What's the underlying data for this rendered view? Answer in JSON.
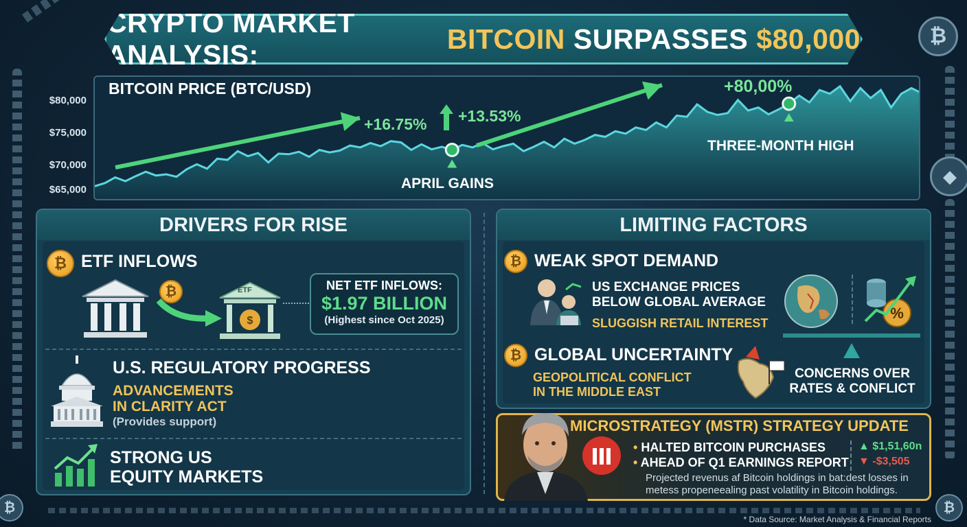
{
  "title": {
    "part1": "CRYPTO MARKET ANALYSIS:",
    "part2": "BITCOIN",
    "part3": "SURPASSES",
    "part4": "$80,000"
  },
  "chart_data": {
    "type": "area",
    "title": "BITCOIN PRICE (BTC/USD)",
    "y_ticks": [
      "$80,000",
      "$75,000",
      "$70,000",
      "$65,000"
    ],
    "ylim": [
      63500,
      83500
    ],
    "series": [
      {
        "values": [
          66000,
          66500,
          67400,
          66800,
          67600,
          68300,
          67700,
          67900,
          67500,
          68700,
          69500,
          68800,
          70400,
          70200,
          71600,
          70800,
          71300,
          69800,
          71200,
          71100,
          71500,
          70700,
          71800,
          71400,
          71700,
          72500,
          72200,
          72900,
          72400,
          73200,
          73000,
          71800,
          72700,
          71900,
          72300,
          71800,
          72600,
          72200,
          72900,
          71900,
          72400,
          72800,
          71600,
          72300,
          73100,
          72200,
          73600,
          72800,
          73400,
          74200,
          73900,
          74800,
          74400,
          75400,
          75000,
          76200,
          75400,
          77300,
          77100,
          79100,
          77900,
          77400,
          77700,
          79800,
          78100,
          78600,
          77500,
          78300,
          79200,
          80500,
          79400,
          81400,
          80800,
          82000,
          79600,
          81700,
          80100,
          81400,
          78600,
          80800,
          81700,
          80900
        ]
      }
    ],
    "annotations": {
      "pct1": "+16.75%",
      "pct2": "+13.53%",
      "pct3": "+80,00%",
      "april": "APRIL GAINS",
      "high": "THREE-MONTH HIGH"
    },
    "colors": {
      "line": "#5cd6e0",
      "area": "#1f7a80",
      "arrow": "#4ed37a",
      "marker": "#2fb86a"
    }
  },
  "drivers": {
    "heading": "DRIVERS FOR RISE",
    "etf": {
      "label": "ETF INFLOWS",
      "building_label": "ETF",
      "box_title": "NET ETF INFLOWS:",
      "box_value": "$1.97 BILLION",
      "box_note": "(Highest since Oct 2025)"
    },
    "reg": {
      "label": "U.S. REGULATORY PROGRESS",
      "line1": "ADVANCEMENTS",
      "line2": "IN CLARITY ACT",
      "note": "(Provides support)"
    },
    "equity": {
      "line1": "STRONG US",
      "line2": "EQUITY MARKETS"
    }
  },
  "limits": {
    "heading": "LIMITING FACTORS",
    "weak": {
      "label": "WEAK SPOT DEMAND",
      "line1": "US EXCHANGE PRICES",
      "line2": "BELOW GLOBAL AVERAGE",
      "gold": "SLUGGISH RETAIL INTEREST"
    },
    "global": {
      "label": "GLOBAL UNCERTAINTY",
      "line1": "GEOPOLITICAL CONFLICT",
      "line2": "IN THE MIDDLE EAST"
    },
    "concerns": {
      "line1": "CONCERNS OVER",
      "line2": "RATES & CONFLICT"
    }
  },
  "mstr": {
    "heading": "MICROSTRATEGY (MSTR) STRATEGY UPDATE",
    "b1": "HALTED BITCOIN PURCHASES",
    "b2": "AHEAD OF Q1 EARNINGS REPORT",
    "up_value": "$1,51,60n",
    "down_value": "-$3,505",
    "note1": "Projected revenus af Bitcoin holdings in bat:dest losses in",
    "note2": "metess propeneealing past volatility in Bitcoin holdings."
  },
  "footer": "* Data Source: Market Analysis & Financial Reports",
  "icons": {
    "btc": "₿",
    "up": "▲",
    "down": "▼",
    "arrow": "↗"
  }
}
